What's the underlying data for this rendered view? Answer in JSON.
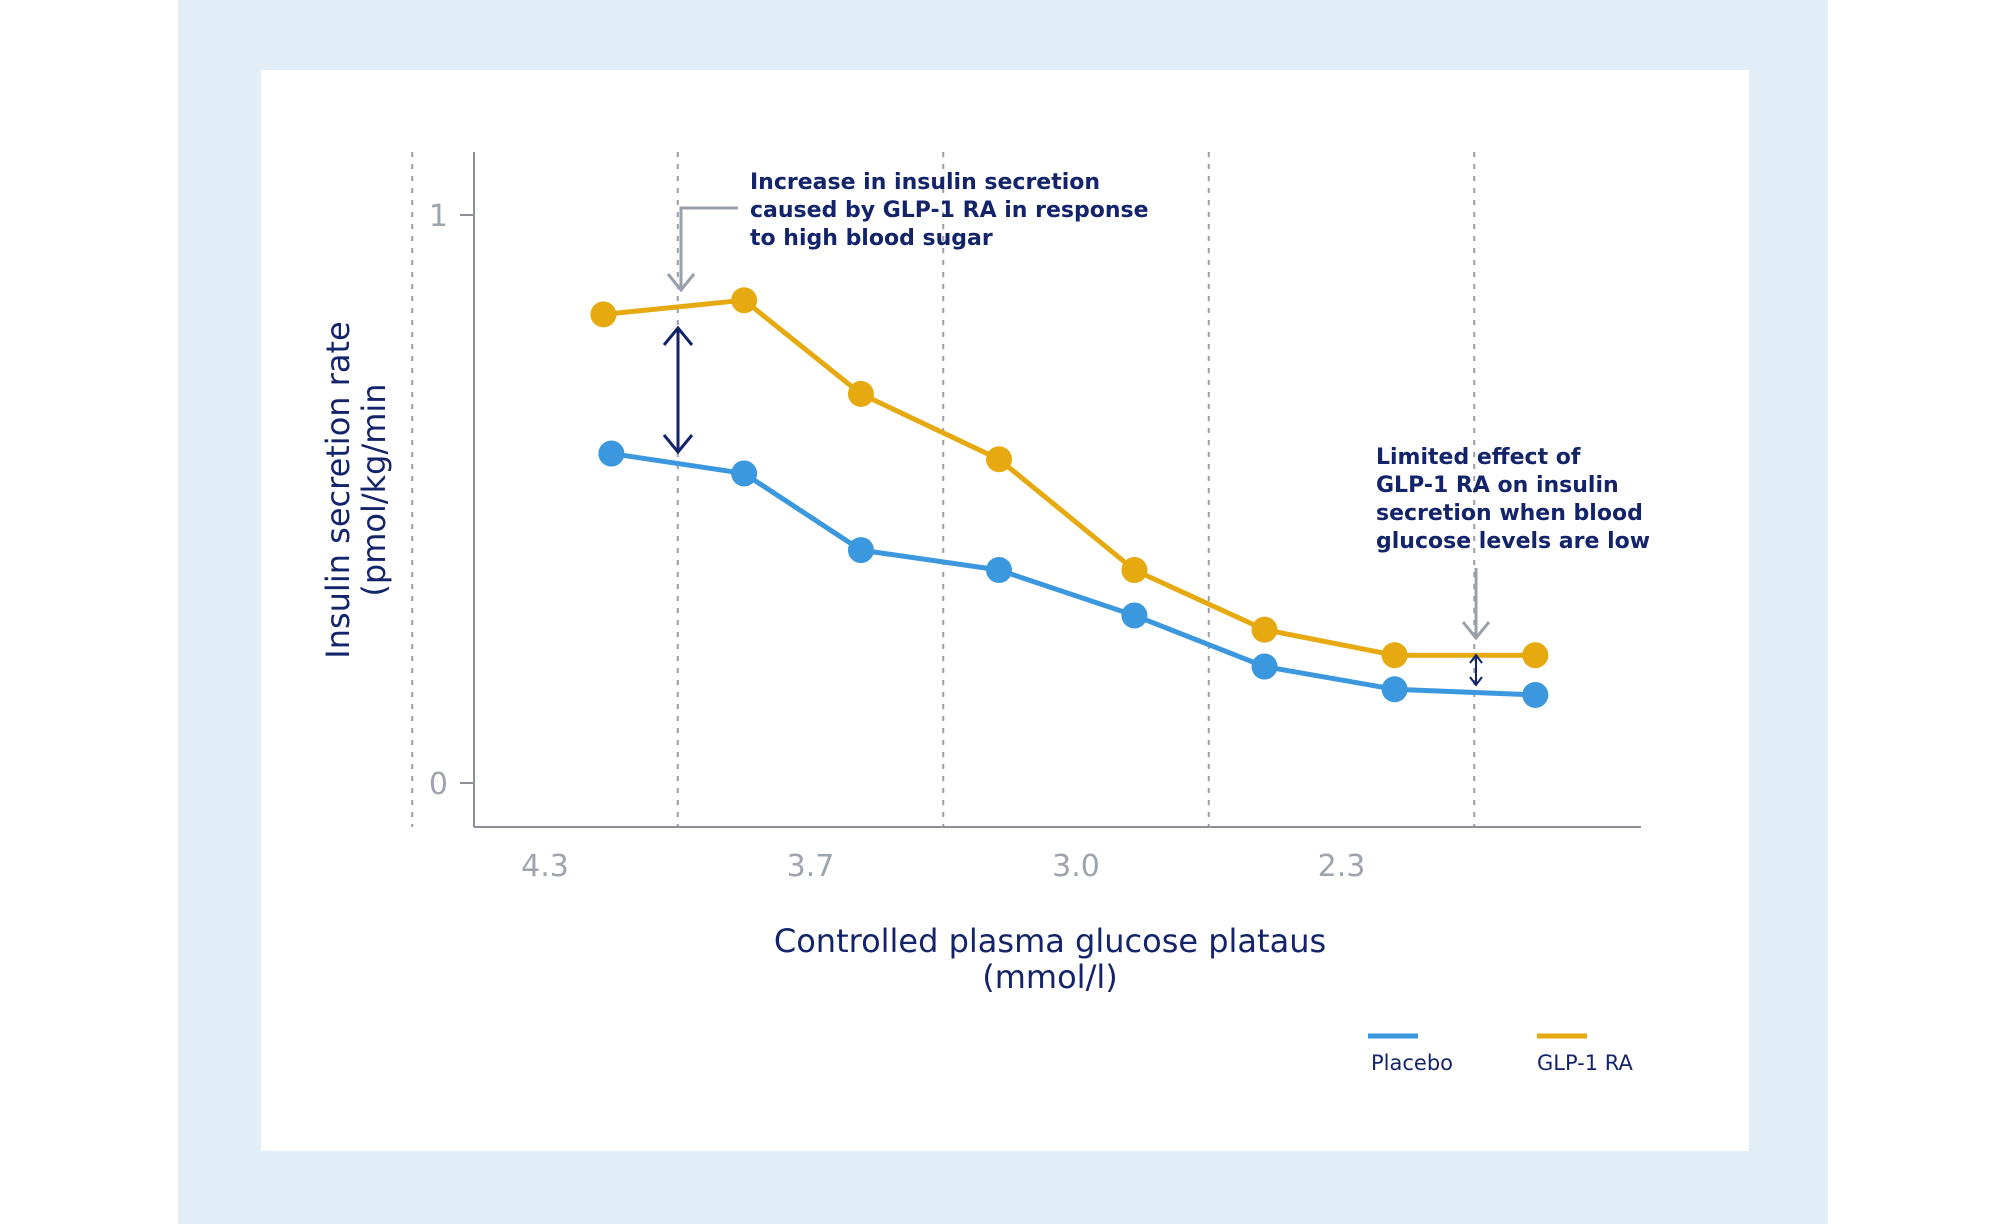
{
  "colors": {
    "outer_background": "#e1eef8",
    "panel_background": "#ffffff",
    "placebo": "#3b97de",
    "glp1": "#e6a910",
    "text_dark": "#14246b",
    "tick_text": "#9ea4ae",
    "axis": "#8a8f98",
    "grid": "#9a9ea6",
    "callout_arrow": "#9aa0aa"
  },
  "chart_data": {
    "type": "line",
    "xlabel_line1": "Controlled plasma glucose plataus",
    "xlabel_line2": "(mmol/l)",
    "ylabel_line1": "Insulin secretion rate",
    "ylabel_line2": "(pmol/kg/min",
    "x_ticks": [
      "4.3",
      "3.7",
      "3.0",
      "2.3"
    ],
    "y_ticks": [
      "1",
      "0"
    ],
    "ylim": [
      0,
      1
    ],
    "grid": "vertical dashed",
    "legend_position": "bottom-right",
    "series": [
      {
        "name": "Placebo",
        "x": [
          0.25,
          0.75,
          1.19,
          1.71,
          2.22,
          2.71,
          3.2,
          3.73
        ],
        "values": [
          0.58,
          0.545,
          0.41,
          0.375,
          0.295,
          0.205,
          0.165,
          0.155
        ]
      },
      {
        "name": "GLP-1 RA",
        "x": [
          0.22,
          0.75,
          1.19,
          1.71,
          2.22,
          2.71,
          3.2,
          3.73
        ],
        "values": [
          0.825,
          0.85,
          0.685,
          0.57,
          0.375,
          0.27,
          0.225,
          0.225
        ]
      }
    ],
    "annotations": [
      {
        "id": "high",
        "lines": [
          "Increase in insulin secretion",
          "caused by GLP-1 RA in response",
          "to high blood sugar"
        ]
      },
      {
        "id": "low",
        "lines": [
          "Limited effect of",
          "GLP-1 RA on insulin",
          "secretion when blood",
          "glucose levels are low"
        ]
      }
    ]
  }
}
